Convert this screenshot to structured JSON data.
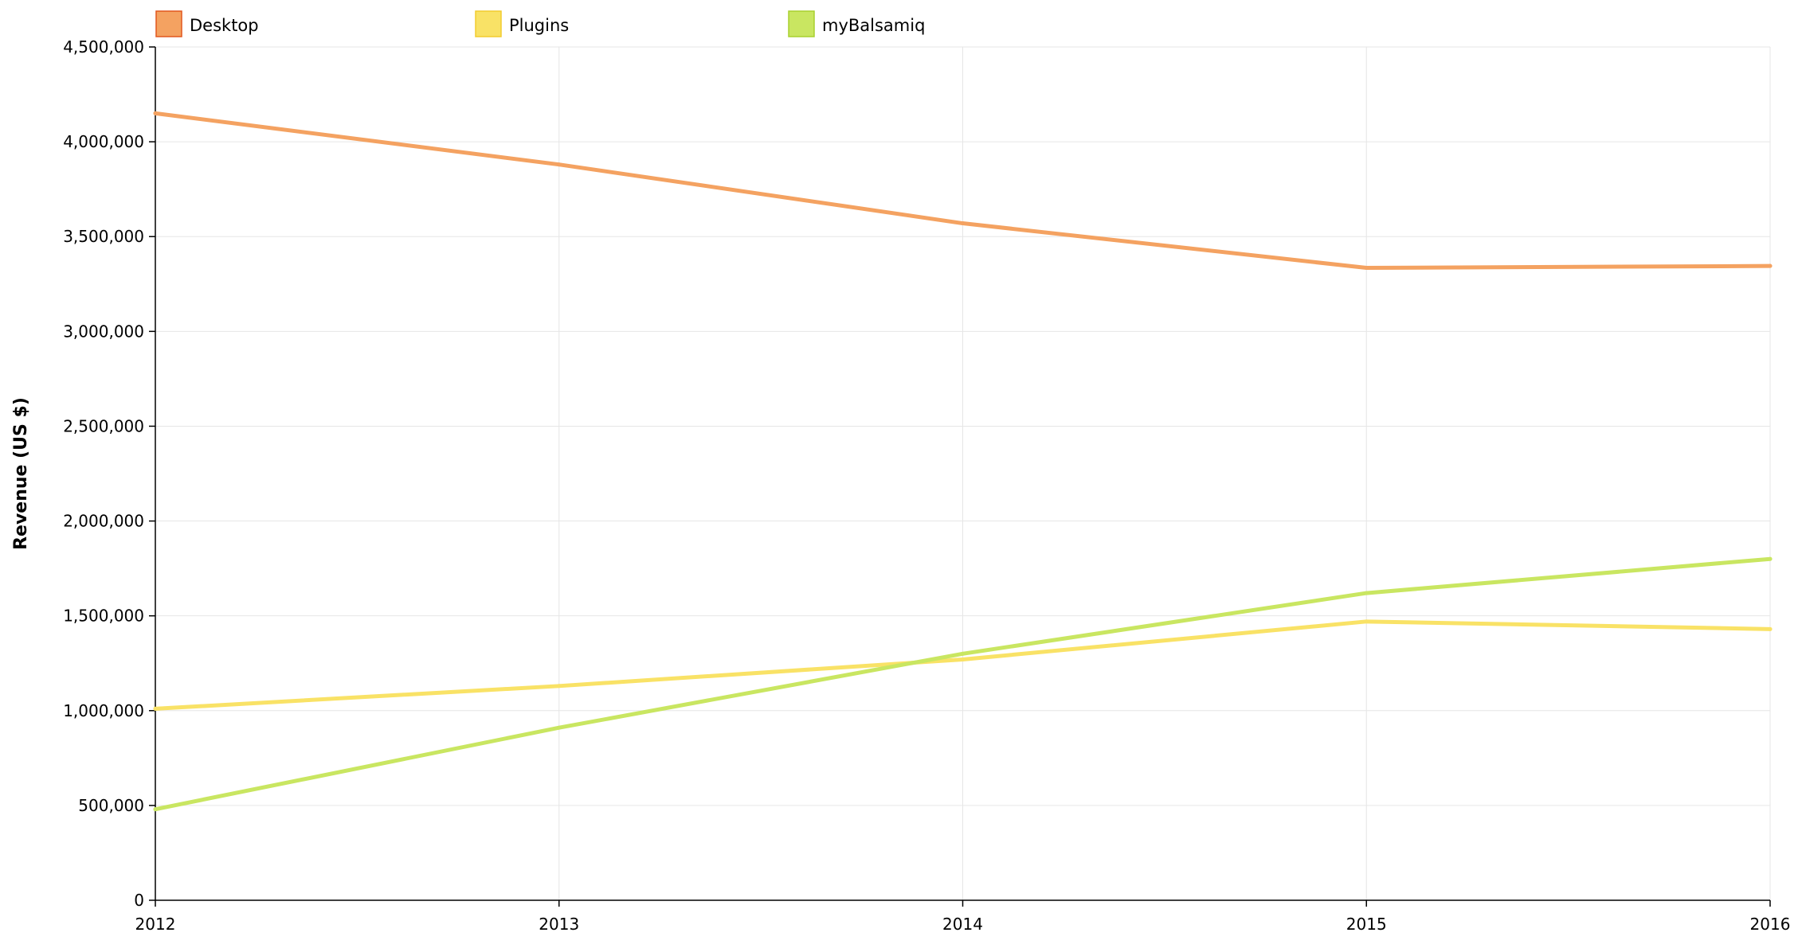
{
  "chart_data": {
    "type": "line",
    "title": "",
    "xlabel": "",
    "ylabel": "Revenue (US $)",
    "x": [
      "2012",
      "2013",
      "2014",
      "2015",
      "2016"
    ],
    "ylim": [
      0,
      4500000
    ],
    "yticks": [
      0,
      500000,
      1000000,
      1500000,
      2000000,
      2500000,
      3000000,
      3500000,
      4000000,
      4500000
    ],
    "ytick_labels": [
      "0",
      "500,000",
      "1,000,000",
      "1,500,000",
      "2,000,000",
      "2,500,000",
      "3,000,000",
      "3,500,000",
      "4,000,000",
      "4,500,000"
    ],
    "grid": true,
    "legend_position": "top-left",
    "series": [
      {
        "name": "Desktop",
        "values": [
          4150000,
          3880000,
          3570000,
          3335000,
          3345000
        ],
        "color": "#f4a261",
        "swatch_border": "#e2571e"
      },
      {
        "name": "Plugins",
        "values": [
          1010000,
          1130000,
          1270000,
          1470000,
          1430000
        ],
        "color": "#f9e266",
        "swatch_border": "#f2cc2e"
      },
      {
        "name": "myBalsamiq",
        "values": [
          480000,
          910000,
          1300000,
          1620000,
          1800000
        ],
        "color": "#c9e661",
        "swatch_border": "#a8d12f"
      }
    ]
  }
}
